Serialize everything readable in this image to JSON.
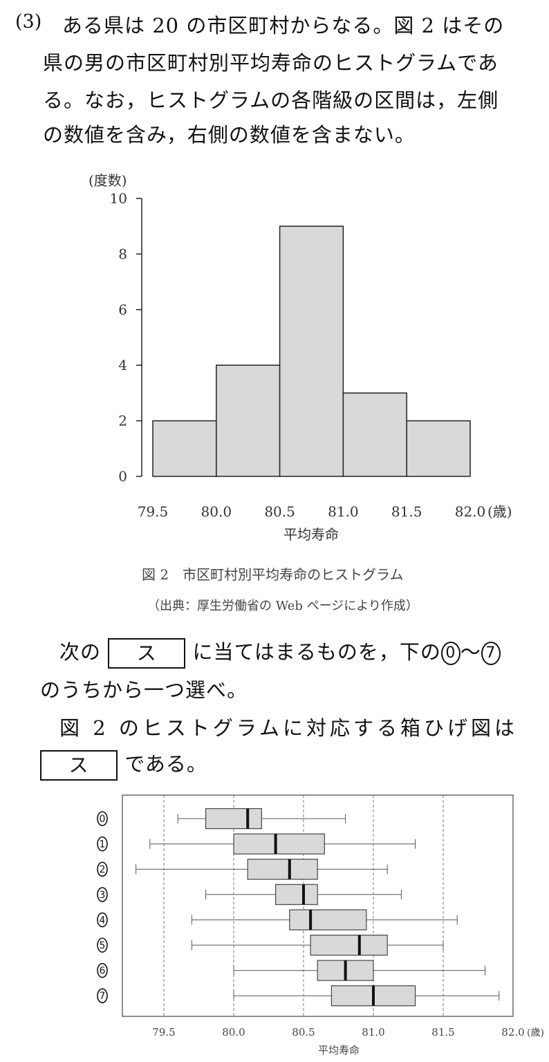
{
  "question": {
    "number": "(3)",
    "text_lines": [
      "ある県は 20 の市区町村からなる。図 2 はその",
      "県の男の市区町村別平均寿命のヒストグラムであ",
      "る。なお，ヒストグラムの各階級の区間は，左側",
      "の数値を含み，右側の数値を含まない。"
    ],
    "instruction_pre": "次の",
    "answer_label": "ス",
    "instruction_post": "に当てはまるものを，下の",
    "range_start": "0",
    "range_sep": "〜",
    "range_end": "7",
    "instruction_line2": "のうちから一つ選べ。",
    "statement_line1": "図 2 のヒストグラムに対応する箱ひげ図は",
    "statement_post": "である。"
  },
  "figure2": {
    "caption": "図 2　市区町村別平均寿命のヒストグラム",
    "source": "（出典：厚生労働省の Web ページにより作成）"
  },
  "chart_data": [
    {
      "type": "bar",
      "subtype": "histogram",
      "bins": [
        [
          79.5,
          80.0
        ],
        [
          80.0,
          80.5
        ],
        [
          80.5,
          81.0
        ],
        [
          81.0,
          81.5
        ],
        [
          81.5,
          82.0
        ]
      ],
      "values": [
        2,
        4,
        9,
        3,
        2
      ],
      "xlabel": "平均寿命",
      "ylabel": "(度数)",
      "x_unit": "(歳)",
      "xlim": [
        79.5,
        82.0
      ],
      "ylim": [
        0,
        10
      ],
      "x_ticks": [
        "79.5",
        "80.0",
        "80.5",
        "81.0",
        "81.5",
        "82.0"
      ],
      "y_ticks": [
        "0",
        "2",
        "4",
        "6",
        "8",
        "10"
      ],
      "bar_color": "#d9d9d9",
      "grid": false
    },
    {
      "type": "boxplot",
      "orientation": "horizontal",
      "xlabel": "平均寿命",
      "x_unit": "(歳)",
      "xlim": [
        79.2,
        82.0
      ],
      "x_ticks": [
        "79.5",
        "80.0",
        "80.5",
        "81.0",
        "81.5",
        "82.0"
      ],
      "grid": "vertical dashed",
      "box_color": "#d9d9d9",
      "series": [
        {
          "name": "0",
          "min": 79.6,
          "q1": 79.8,
          "median": 80.1,
          "q3": 80.2,
          "max": 80.8
        },
        {
          "name": "1",
          "min": 79.4,
          "q1": 80.0,
          "median": 80.3,
          "q3": 80.65,
          "max": 81.3
        },
        {
          "name": "2",
          "min": 79.3,
          "q1": 80.1,
          "median": 80.4,
          "q3": 80.6,
          "max": 81.1
        },
        {
          "name": "3",
          "min": 79.8,
          "q1": 80.3,
          "median": 80.5,
          "q3": 80.6,
          "max": 81.2
        },
        {
          "name": "4",
          "min": 79.7,
          "q1": 80.4,
          "median": 80.55,
          "q3": 80.95,
          "max": 81.6
        },
        {
          "name": "5",
          "min": 79.7,
          "q1": 80.55,
          "median": 80.9,
          "q3": 81.1,
          "max": 81.5
        },
        {
          "name": "6",
          "min": 80.0,
          "q1": 80.6,
          "median": 80.8,
          "q3": 81.0,
          "max": 81.8
        },
        {
          "name": "7",
          "min": 80.0,
          "q1": 80.7,
          "median": 81.0,
          "q3": 81.3,
          "max": 81.9
        }
      ]
    }
  ]
}
